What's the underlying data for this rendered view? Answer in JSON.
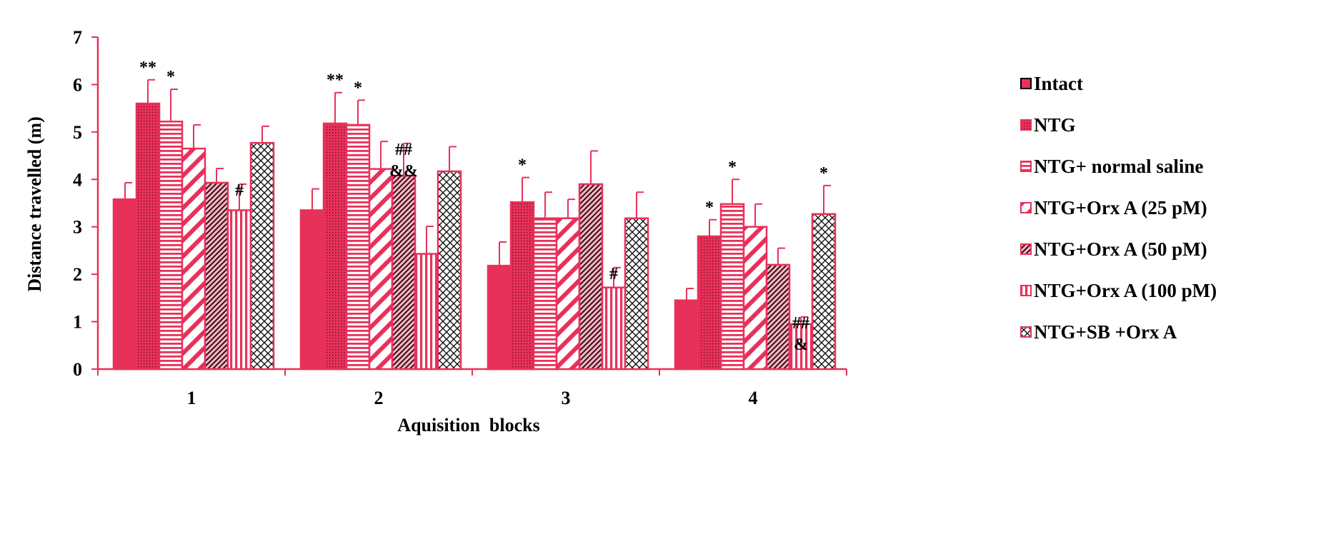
{
  "chart_data": {
    "type": "bar",
    "title": "",
    "xlabel": "Aquisition  blocks",
    "ylabel": "Distance travelled (m)",
    "ylim": [
      0,
      7
    ],
    "yticks": [
      "0",
      "1",
      "2",
      "3",
      "4",
      "5",
      "6",
      "7"
    ],
    "categories": [
      "1",
      "2",
      "3",
      "4"
    ],
    "legend_position": "right",
    "grid": false,
    "series": [
      {
        "name": "Intact",
        "pattern": "solid",
        "values": [
          3.58,
          3.35,
          2.18,
          1.45
        ],
        "errors": [
          0.35,
          0.45,
          0.5,
          0.25
        ]
      },
      {
        "name": "NTG",
        "pattern": "dots",
        "values": [
          5.6,
          5.18,
          3.52,
          2.8
        ],
        "errors": [
          0.5,
          0.65,
          0.52,
          0.35
        ]
      },
      {
        "name": "NTG+ normal saline",
        "pattern": "hstripes",
        "values": [
          5.22,
          5.15,
          3.18,
          3.48
        ],
        "errors": [
          0.68,
          0.52,
          0.55,
          0.52
        ]
      },
      {
        "name": "NTG+Orx A (25 pM)",
        "pattern": "wide-diagonal",
        "values": [
          4.65,
          4.22,
          3.18,
          3.0
        ],
        "errors": [
          0.5,
          0.58,
          0.4,
          0.48
        ]
      },
      {
        "name": "NTG+Orx A (50 pM)",
        "pattern": "fine-diagonal",
        "values": [
          3.93,
          4.08,
          3.9,
          2.2
        ],
        "errors": [
          0.3,
          0.68,
          0.7,
          0.35
        ]
      },
      {
        "name": "NTG+Orx A (100 pM)",
        "pattern": "vstripes",
        "values": [
          3.35,
          2.43,
          1.72,
          0.95
        ],
        "errors": [
          0.55,
          0.58,
          0.42,
          0.15
        ]
      },
      {
        "name": "NTG+SB +Orx A",
        "pattern": "crosshatch",
        "values": [
          4.77,
          4.17,
          3.18,
          3.27
        ],
        "errors": [
          0.35,
          0.52,
          0.55,
          0.6
        ]
      }
    ],
    "annotations": [
      {
        "category": 0,
        "series": 1,
        "text": "**"
      },
      {
        "category": 0,
        "series": 2,
        "text": "*"
      },
      {
        "category": 0,
        "series": 5,
        "text": "#"
      },
      {
        "category": 1,
        "series": 1,
        "text": "**"
      },
      {
        "category": 1,
        "series": 2,
        "text": "*"
      },
      {
        "category": 1,
        "series": 4,
        "text": "##"
      },
      {
        "category": 1,
        "series": 4,
        "text": "&&"
      },
      {
        "category": 2,
        "series": 1,
        "text": "*"
      },
      {
        "category": 2,
        "series": 5,
        "text": "#"
      },
      {
        "category": 3,
        "series": 1,
        "text": "*"
      },
      {
        "category": 3,
        "series": 2,
        "text": "*"
      },
      {
        "category": 3,
        "series": 5,
        "text": "##"
      },
      {
        "category": 3,
        "series": 5,
        "text": "&"
      },
      {
        "category": 3,
        "series": 6,
        "text": "*"
      }
    ]
  },
  "colors": {
    "bar": "#e8315a",
    "bar_dark": "#c8102e",
    "hatch_dark": "#3a0a14",
    "axis": "#e8315a",
    "text": "#000000"
  }
}
